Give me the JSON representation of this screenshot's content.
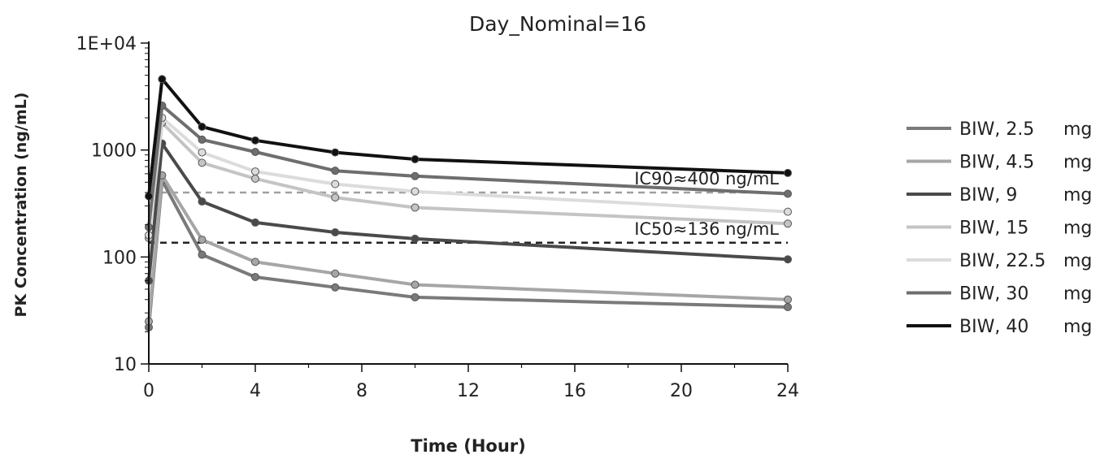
{
  "chart_data": {
    "type": "line",
    "title": "Day_Nominal=16",
    "xlabel": "Time (Hour)",
    "ylabel": "PK Concentration (ng/mL)",
    "x_scale": "linear",
    "y_scale": "log",
    "xlim": [
      0,
      24
    ],
    "ylim": [
      10,
      10000
    ],
    "x_ticks": [
      0,
      4,
      8,
      12,
      16,
      20,
      24
    ],
    "x_tick_labels": [
      "0",
      "4",
      "8",
      "12",
      "16",
      "20",
      "24"
    ],
    "y_ticks": [
      10,
      100,
      1000,
      10000
    ],
    "y_tick_labels": [
      "10",
      "100",
      "1000",
      "1E+04"
    ],
    "grid": false,
    "legend_position": "right",
    "legend_unit": "mg",
    "x": [
      0,
      0.5,
      2,
      4,
      7,
      10,
      24
    ],
    "series": [
      {
        "name": "BIW, 2.5",
        "color": "#7a7a7a",
        "values": [
          22,
          520,
          105,
          65,
          52,
          42,
          34
        ]
      },
      {
        "name": "BIW, 4.5",
        "color": "#a6a6a6",
        "values": [
          25,
          580,
          145,
          90,
          70,
          55,
          40
        ]
      },
      {
        "name": "BIW, 9",
        "color": "#4a4a4a",
        "values": [
          60,
          1150,
          330,
          210,
          170,
          148,
          95
        ]
      },
      {
        "name": "BIW, 15",
        "color": "#c4c4c4",
        "values": [
          150,
          1800,
          760,
          540,
          360,
          290,
          205
        ]
      },
      {
        "name": "BIW, 22.5",
        "color": "#dcdcdc",
        "values": [
          160,
          2000,
          950,
          630,
          480,
          410,
          265
        ]
      },
      {
        "name": "BIW, 30",
        "color": "#6e6e6e",
        "values": [
          190,
          2600,
          1250,
          960,
          640,
          570,
          390
        ]
      },
      {
        "name": "BIW, 40",
        "color": "#111111",
        "values": [
          370,
          4600,
          1650,
          1230,
          950,
          820,
          610
        ]
      }
    ],
    "reference_lines": [
      {
        "label": "IC90≈400 ng/mL",
        "y": 400,
        "color": "#a0a0a0",
        "style": "dashed"
      },
      {
        "label": "IC50≈136 ng/mL",
        "y": 136,
        "color": "#222222",
        "style": "dashed"
      }
    ]
  }
}
